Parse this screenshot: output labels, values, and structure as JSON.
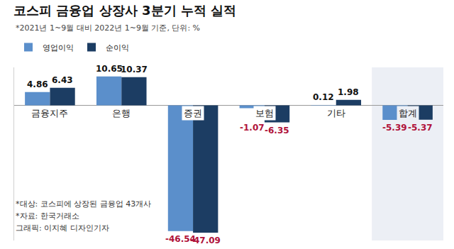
{
  "chart_data": {
    "type": "bar",
    "title": "코스피 금융업 상장사 3분기 누적 실적",
    "subtitle": "*2021년 1~9월 대비 2022년 1~9월 기준, 단위: %",
    "categories": [
      "금융지주",
      "은행",
      "증권",
      "보험",
      "기타",
      "합계"
    ],
    "series": [
      {
        "name": "영업이익",
        "color": "#5b8fcb",
        "values": [
          4.86,
          10.65,
          -46.54,
          -1.07,
          0.12,
          -5.39
        ]
      },
      {
        "name": "순이익",
        "color": "#1c3d63",
        "values": [
          6.43,
          10.37,
          -47.09,
          -6.35,
          1.98,
          -5.37
        ]
      }
    ],
    "ylim": [
      -50,
      14
    ],
    "yticks": [
      0
    ],
    "tick_labels": "x",
    "data_labels": true,
    "legend": "top-left",
    "annotations": [
      "*대상: 코스피에 상장된 금융업 43개사",
      "*자료: 한국거래소",
      "그래픽: 이지혜 디자인기자"
    ]
  }
}
